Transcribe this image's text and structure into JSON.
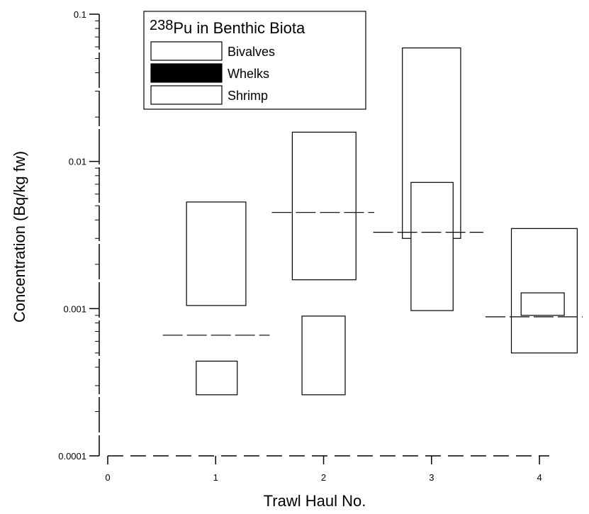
{
  "chart_data": {
    "type": "box",
    "xlabel": "Trawl Haul No.",
    "ylabel": "Concentration (Bq/kg fw)",
    "x_ticks": [
      "0",
      "1",
      "2",
      "3",
      "4"
    ],
    "y_ticks": [
      "0.0001",
      "0.001",
      "0.01",
      "0.1"
    ],
    "y_scale": "log",
    "xlim": [
      0,
      4.4
    ],
    "ylim": [
      0.0001,
      0.1
    ],
    "legend": {
      "title_isotope": "238",
      "title_text": "Pu in Benthic Biota",
      "placement": "top-left",
      "entries": [
        {
          "name": "Bivalves",
          "fill": "#ffffff"
        },
        {
          "name": "Whelks",
          "fill": "#000000"
        },
        {
          "name": "Shrimp",
          "fill": "#ffffff"
        }
      ]
    },
    "boxes": [
      {
        "haul": 1,
        "x_from": 0.73,
        "x_to": 1.28,
        "low": 0.00105,
        "high": 0.0053
      },
      {
        "haul": 1,
        "x_from": 0.82,
        "x_to": 1.2,
        "low": 0.00026,
        "high": 0.00044
      },
      {
        "haul": 2,
        "x_from": 1.71,
        "x_to": 2.3,
        "low": 0.00157,
        "high": 0.0158
      },
      {
        "haul": 2,
        "x_from": 1.8,
        "x_to": 2.2,
        "low": 0.00026,
        "high": 0.00089
      },
      {
        "haul": 3,
        "x_from": 2.73,
        "x_to": 3.27,
        "low": 0.003,
        "high": 0.059
      },
      {
        "haul": 3,
        "x_from": 2.81,
        "x_to": 3.2,
        "low": 0.00097,
        "high": 0.0072
      },
      {
        "haul": 4,
        "x_from": 3.74,
        "x_to": 4.35,
        "low": 0.0005,
        "high": 0.0035
      },
      {
        "haul": 4,
        "x_from": 3.83,
        "x_to": 4.23,
        "low": 0.0009,
        "high": 0.00128
      }
    ],
    "dashed_reference_lines": [
      {
        "x_from": 0.51,
        "x_to": 1.5,
        "y": 0.00066
      },
      {
        "x_from": 1.52,
        "x_to": 2.47,
        "y": 0.0045
      },
      {
        "x_from": 2.46,
        "x_to": 3.48,
        "y": 0.0033
      },
      {
        "x_from": 3.5,
        "x_to": 4.4,
        "y": 0.00088
      }
    ]
  }
}
